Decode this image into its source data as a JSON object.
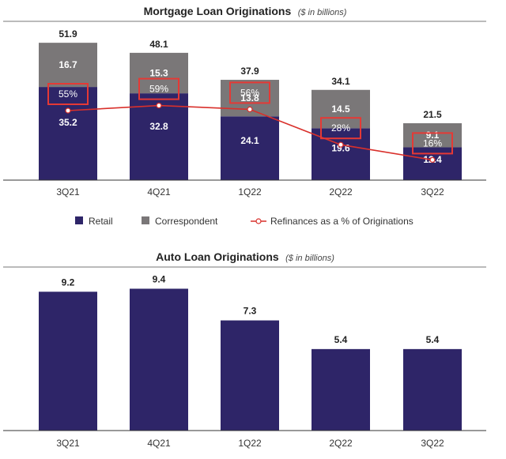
{
  "colors": {
    "retail": "#2e2568",
    "correspondent": "#7a7778",
    "refinance_line": "#d9302b",
    "highlight_box": "#e53935",
    "axis": "#333333"
  },
  "chart_data": [
    {
      "type": "bar",
      "stacked": true,
      "title": "Mortgage Loan Originations",
      "title_unit": "($ in billions)",
      "categories": [
        "3Q21",
        "4Q21",
        "1Q22",
        "2Q22",
        "3Q22"
      ],
      "series": [
        {
          "name": "Retail",
          "values": [
            35.2,
            32.8,
            24.1,
            19.6,
            12.4
          ]
        },
        {
          "name": "Correspondent",
          "values": [
            16.7,
            15.3,
            13.8,
            14.5,
            9.1
          ]
        }
      ],
      "totals": [
        51.9,
        48.1,
        37.9,
        34.1,
        21.5
      ],
      "line_series": {
        "name": "Refinances as a % of Originations",
        "values": [
          55,
          59,
          56,
          28,
          16
        ],
        "labels": [
          "55%",
          "59%",
          "56%",
          "28%",
          "16%"
        ]
      },
      "legend": [
        "Retail",
        "Correspondent",
        "Refinances as a % of Originations"
      ],
      "legend_position": "bottom",
      "ylim": [
        0,
        60
      ]
    },
    {
      "type": "bar",
      "title": "Auto Loan Originations",
      "title_unit": "($ in billions)",
      "categories": [
        "3Q21",
        "4Q21",
        "1Q22",
        "2Q22",
        "3Q22"
      ],
      "values": [
        9.2,
        9.4,
        7.3,
        5.4,
        5.4
      ],
      "labels": [
        "9.2",
        "9.4",
        "7.3",
        "5.4",
        "5.4"
      ],
      "ylim": [
        0,
        10.8
      ]
    }
  ]
}
